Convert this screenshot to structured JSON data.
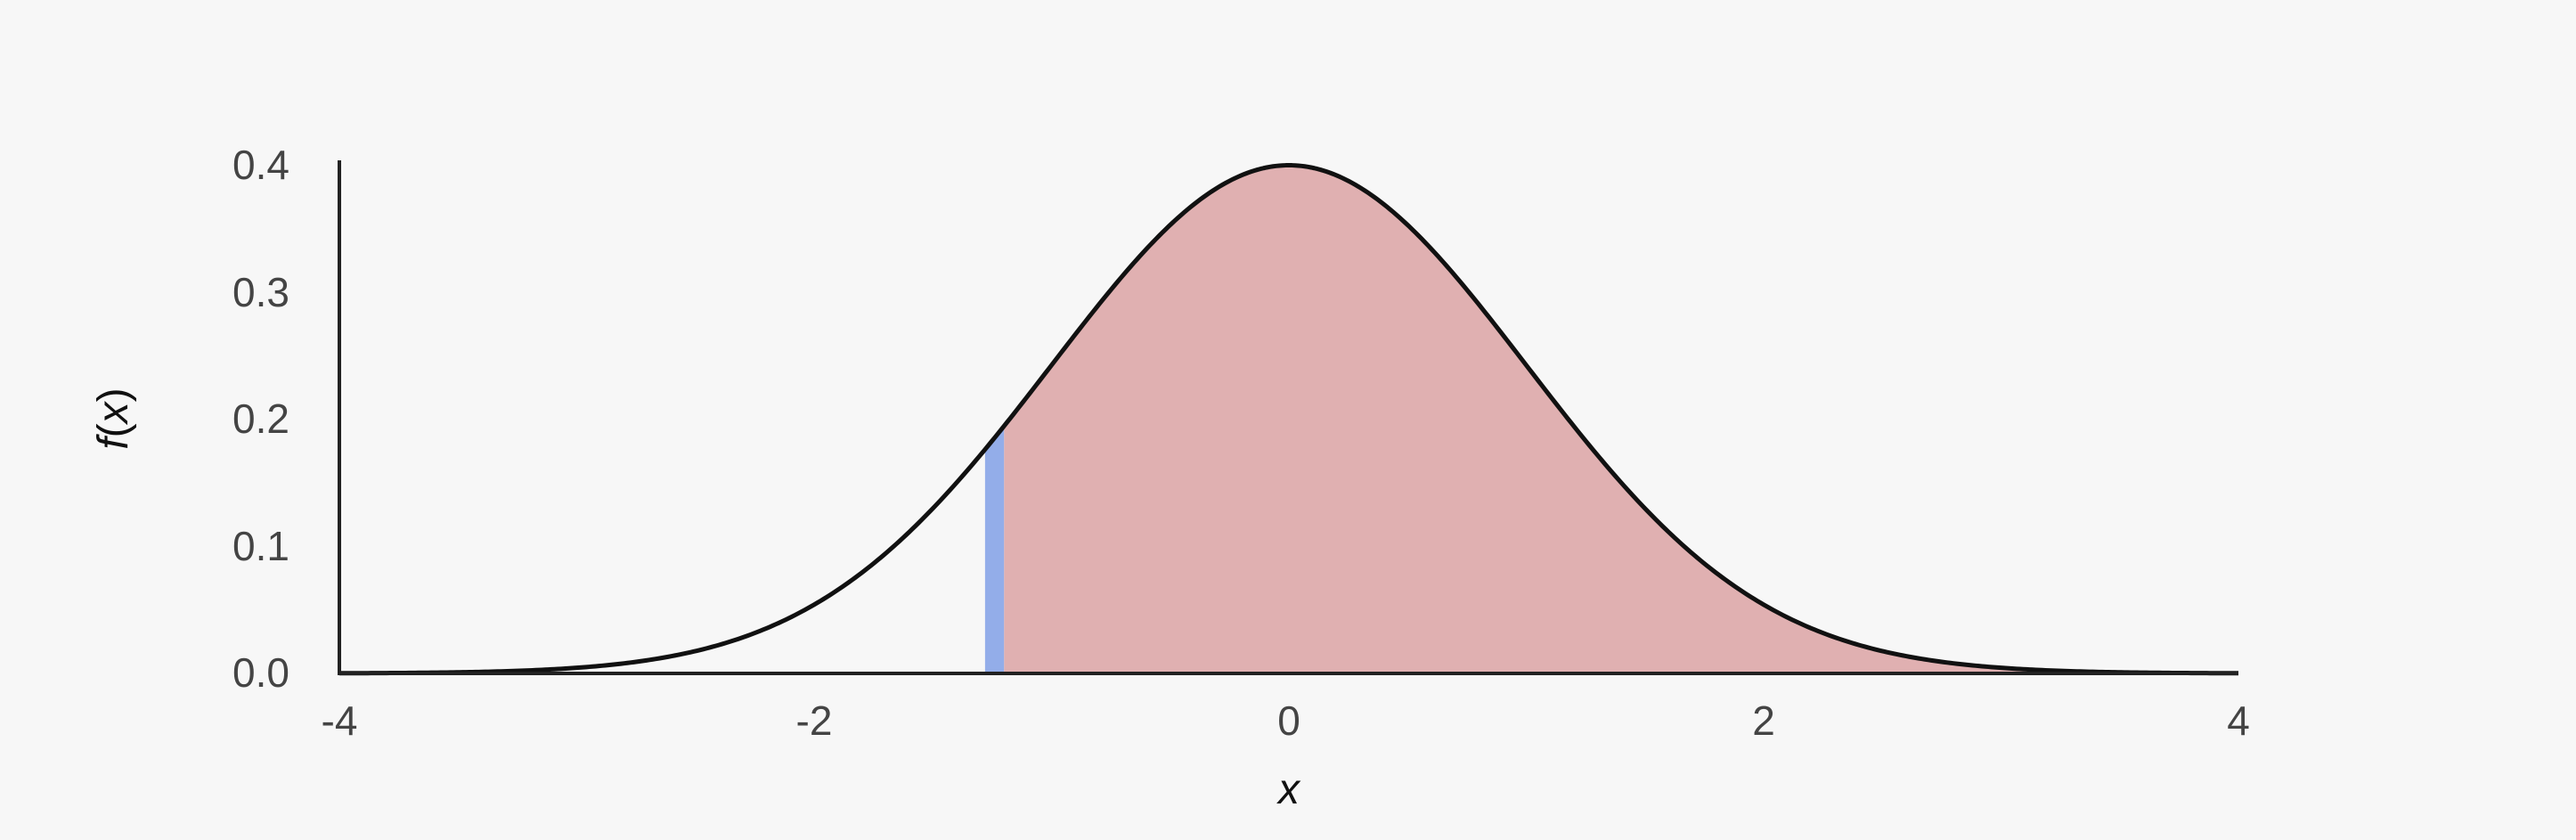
{
  "chart_data": {
    "type": "area",
    "title": "",
    "xlabel": "x",
    "ylabel_parts": {
      "f": "f",
      "open": "(",
      "x": "x",
      "close": ")"
    },
    "xlim": [
      -4,
      4
    ],
    "ylim": [
      0.0,
      0.4
    ],
    "x_ticks": [
      "-4",
      "-2",
      "0",
      "2",
      "4"
    ],
    "y_ticks": [
      "0.0",
      "0.1",
      "0.2",
      "0.3",
      "0.4"
    ],
    "curve": {
      "function": "standard normal density",
      "mean": 0,
      "sd": 1
    },
    "shaded_region": {
      "x_from": -1.2,
      "x_to": 4,
      "color": "#e0b0b1"
    },
    "marker_band": {
      "x_from": -1.28,
      "x_to": -1.2,
      "color": "#93ade9"
    },
    "grid": false,
    "legend": "none",
    "colors": {
      "curve": "#111111",
      "axis": "#222222",
      "background": "#f7f7f7"
    }
  }
}
